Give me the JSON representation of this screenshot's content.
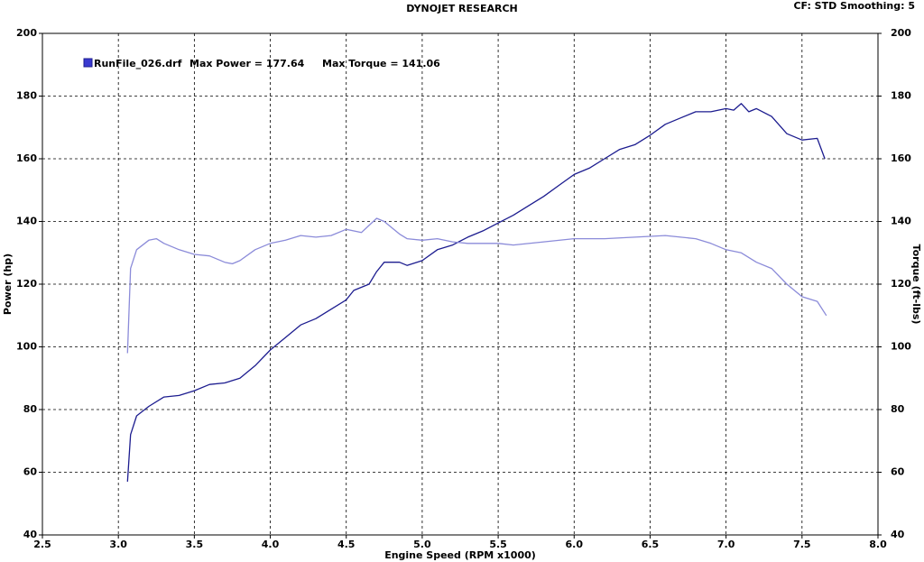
{
  "chart_data": {
    "type": "line",
    "title": "DYNOJET RESEARCH",
    "subtitle": "CF: STD  Smoothing: 5",
    "x_label": "Engine Speed (RPM x1000)",
    "y_label": "Power (hp)",
    "y2_label": "Torque (ft-lbs)",
    "annotations": [
      "Max Power = 177.64",
      "Max Torque = 141.06"
    ],
    "xlim": [
      2.5,
      8.0
    ],
    "xticks": [
      2.5,
      {
        "value": 3,
        "label": "3.0"
      },
      3.5,
      {
        "value": 4,
        "label": "4.0"
      },
      4.5,
      {
        "value": 5,
        "label": "5.0"
      },
      5.5,
      {
        "value": 6,
        "label": "6.0"
      },
      6.5,
      {
        "value": 7,
        "label": "7.0"
      },
      7.5,
      {
        "value": 8,
        "label": "8.0"
      }
    ],
    "ylim": [
      40,
      200
    ],
    "yticks": [
      40,
      60,
      80,
      100,
      120,
      140,
      160,
      180,
      200
    ],
    "y2lim": [
      40,
      200
    ],
    "y2ticks": [
      40,
      60,
      80,
      100,
      120,
      140,
      160,
      180,
      200
    ],
    "grid": true,
    "series": [
      {
        "name": "RunFile_026.drf",
        "color": "#1c1c8f",
        "x": [
          3.06,
          3.08,
          3.12,
          3.2,
          3.3,
          3.4,
          3.5,
          3.6,
          3.7,
          3.8,
          3.9,
          4.0,
          4.1,
          4.2,
          4.3,
          4.4,
          4.5,
          4.55,
          4.65,
          4.7,
          4.75,
          4.85,
          4.9,
          5.0,
          5.1,
          5.2,
          5.3,
          5.4,
          5.5,
          5.6,
          5.7,
          5.8,
          5.9,
          6.0,
          6.1,
          6.2,
          6.3,
          6.4,
          6.5,
          6.6,
          6.7,
          6.8,
          6.9,
          7.0,
          7.05,
          7.1,
          7.15,
          7.2,
          7.3,
          7.4,
          7.5,
          7.6,
          7.65
        ],
        "values": [
          57,
          72,
          78,
          81,
          84,
          84.5,
          86,
          88,
          88.5,
          90,
          94,
          99,
          103,
          107,
          109,
          112,
          115,
          118,
          120,
          124,
          127,
          127,
          126,
          127.5,
          131,
          132.5,
          135,
          137,
          139.5,
          142,
          145,
          148,
          151.5,
          155,
          157,
          160,
          163,
          164.5,
          167.5,
          171,
          173,
          175,
          175,
          176,
          175.5,
          177.6,
          175,
          176,
          173.5,
          168,
          166,
          166.5,
          160
        ]
      },
      {
        "color": "#8b8bd9",
        "axis": "y2",
        "x": [
          3.06,
          3.08,
          3.12,
          3.2,
          3.25,
          3.3,
          3.4,
          3.5,
          3.6,
          3.7,
          3.75,
          3.8,
          3.9,
          4.0,
          4.1,
          4.2,
          4.3,
          4.4,
          4.5,
          4.6,
          4.7,
          4.75,
          4.85,
          4.9,
          5.0,
          5.1,
          5.2,
          5.3,
          5.5,
          5.6,
          5.8,
          6.0,
          6.2,
          6.4,
          6.6,
          6.8,
          6.9,
          7.0,
          7.1,
          7.2,
          7.3,
          7.4,
          7.5,
          7.6,
          7.66
        ],
        "values": [
          98,
          125,
          131,
          134,
          134.5,
          133,
          131,
          129.5,
          129,
          127,
          126.5,
          127.5,
          131,
          133,
          134,
          135.5,
          135,
          135.5,
          137.5,
          136.5,
          141,
          140,
          136,
          134.5,
          134,
          134.5,
          133.5,
          133,
          133,
          132.5,
          133.5,
          134.5,
          134.5,
          135,
          135.5,
          134.5,
          133,
          131,
          130,
          127,
          125,
          120,
          116,
          114.5,
          110
        ]
      }
    ]
  }
}
